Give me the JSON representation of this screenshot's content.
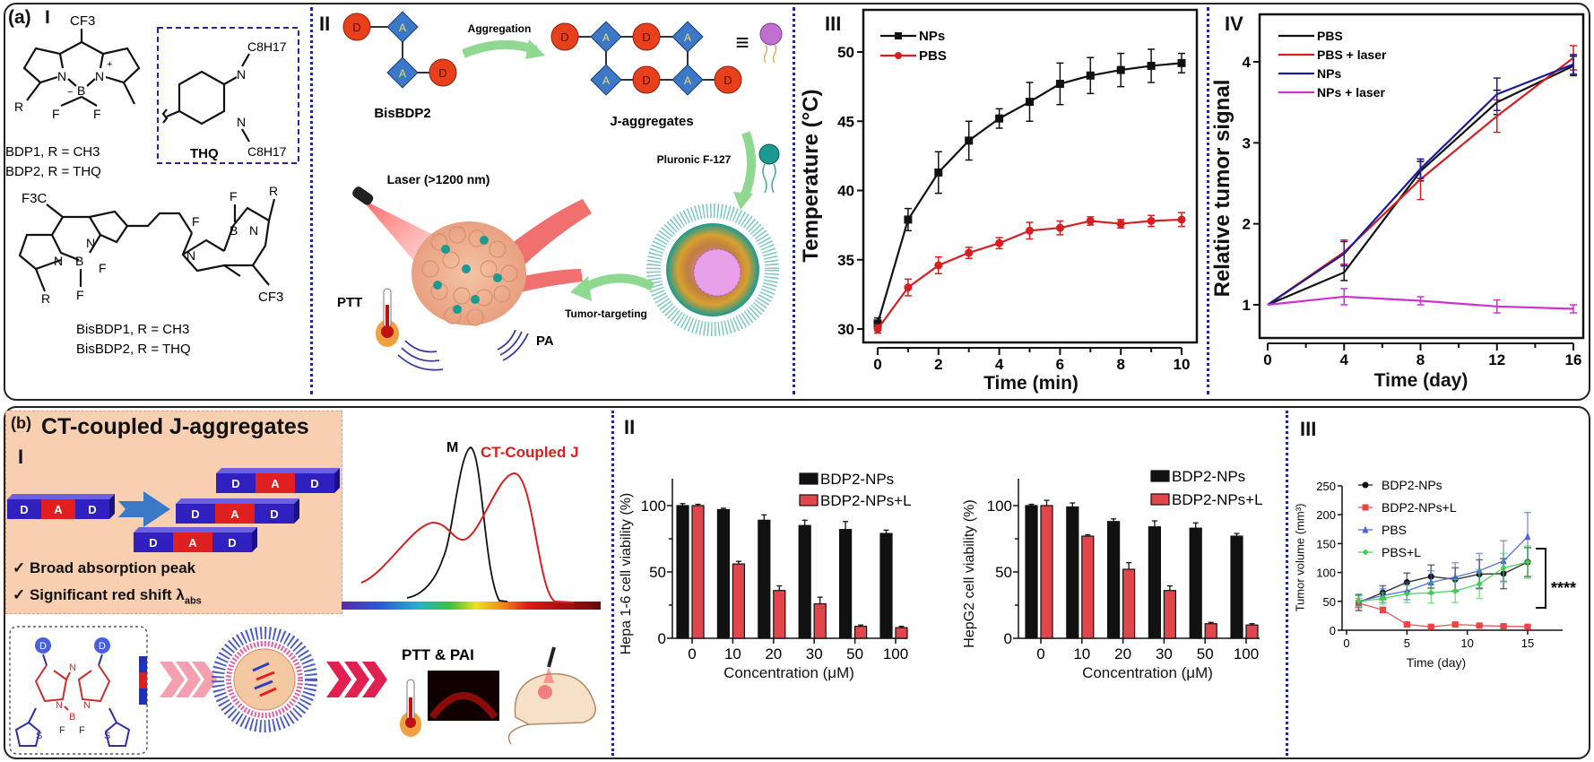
{
  "panel_a": {
    "label": "(a)",
    "section_I": {
      "label": "I",
      "cf3_top": "CF3",
      "bdp_atoms": [
        "N",
        "B",
        "N",
        "F",
        "F",
        "R",
        "−",
        "+"
      ],
      "bdp1": "BDP1, R = CH3",
      "bdp2": "BDP2, R = THQ",
      "thq_label": "THQ",
      "thq_sub_top": "C8H17",
      "thq_sub_bottom": "C8H17",
      "thq_atoms": [
        "N",
        "N"
      ],
      "bis_f3c": "F3C",
      "bis_cf3": "CF3",
      "bis_atoms": [
        "N",
        "B",
        "N",
        "F",
        "F",
        "R",
        "N",
        "B",
        "N",
        "F",
        "F",
        "R"
      ],
      "bisbdp1": "BisBDP1, R = CH3",
      "bisbdp2": "BisBDP2, R = THQ"
    },
    "section_II": {
      "label": "II",
      "donor": "D",
      "acceptor": "A",
      "bisbdp2": "BisBDP2",
      "aggregation": "Aggregation",
      "j_aggregates": "J-aggregates",
      "equiv": "≡",
      "pluronic": "Pluronic F-127",
      "laser": "Laser (>1200 nm)",
      "ptt": "PTT",
      "pa": "PA",
      "tumor_targeting": "Tumor-targeting"
    },
    "section_III": {
      "label": "III"
    },
    "section_IV": {
      "label": "IV"
    }
  },
  "panel_b": {
    "label": "(b)",
    "section_I": {
      "title": "CT-coupled J-aggregates",
      "label": "I",
      "donor": "D",
      "acceptor": "A",
      "check1": "✓ Broad absorption peak",
      "check2": "✓ Significant red shift λ",
      "check2_sub": "abs",
      "spectrum_m": "M",
      "spectrum_ct": "CT-Coupled J",
      "ptt_pai": "PTT & PAI",
      "mol_atoms": [
        "D",
        "D",
        "N",
        "N",
        "N",
        "B",
        "F",
        "F",
        "S",
        "S"
      ]
    },
    "section_II": {
      "label": "II"
    },
    "section_III": {
      "label": "III"
    }
  },
  "colors": {
    "donor": "#e8401c",
    "acceptor": "#3b78c8",
    "npsBlack": "#111111",
    "pbsRed": "#d42020",
    "navy": "#1a1a9a",
    "magenta": "#cc33cc",
    "barRed": "#e0474c",
    "green": "#3ccf4e",
    "blue": "#4a5fd8",
    "peach": "#f8cfb0"
  },
  "chart_data": [
    {
      "type": "line",
      "xlabel": "Time (min)",
      "ylabel": "Temperature (°C)",
      "x": [
        0,
        1,
        2,
        3,
        4,
        5,
        6,
        7,
        8,
        9,
        10
      ],
      "xticks": [
        0,
        2,
        4,
        6,
        8,
        10
      ],
      "xminor": [
        1,
        3,
        5,
        7,
        9
      ],
      "yticks": [
        30,
        35,
        40,
        45,
        50
      ],
      "ylim": [
        29,
        53
      ],
      "legend": "top-left",
      "series": [
        {
          "name": "NPs",
          "color": "#111111",
          "marker": "square",
          "values": [
            30.4,
            37.9,
            41.3,
            43.6,
            45.2,
            46.4,
            47.7,
            48.3,
            48.7,
            49.0,
            49.2
          ],
          "errors": [
            0.4,
            0.8,
            1.5,
            1.4,
            0.7,
            1.4,
            1.5,
            1.3,
            1.2,
            1.2,
            0.7
          ]
        },
        {
          "name": "PBS",
          "color": "#d42020",
          "marker": "circle",
          "values": [
            30.0,
            33.0,
            34.6,
            35.5,
            36.2,
            37.1,
            37.3,
            37.8,
            37.6,
            37.8,
            37.9
          ],
          "errors": [
            0.3,
            0.6,
            0.6,
            0.4,
            0.4,
            0.6,
            0.5,
            0.3,
            0.3,
            0.4,
            0.5
          ]
        }
      ]
    },
    {
      "type": "line",
      "xlabel": "Time (day)",
      "ylabel": "Relative tumor signal",
      "x": [
        0,
        4,
        8,
        12,
        16
      ],
      "xticks": [
        0,
        4,
        8,
        12,
        16
      ],
      "xminor": [
        2,
        6,
        10,
        14
      ],
      "yticks": [
        1,
        2,
        3,
        4
      ],
      "ylim": [
        0.6,
        4.6
      ],
      "legend": "top-left",
      "series": [
        {
          "name": "PBS",
          "color": "#111111",
          "values": [
            1,
            1.4,
            2.65,
            3.5,
            3.95
          ],
          "errors": [
            0,
            0.1,
            0.12,
            0.15,
            0.12
          ]
        },
        {
          "name": "PBS + laser",
          "color": "#d42020",
          "values": [
            1,
            1.65,
            2.55,
            3.33,
            4.05
          ],
          "errors": [
            0,
            0.15,
            0.25,
            0.2,
            0.15
          ]
        },
        {
          "name": "NPs",
          "color": "#1a1a9a",
          "values": [
            1,
            1.63,
            2.68,
            3.6,
            3.97
          ],
          "errors": [
            0,
            0.15,
            0.12,
            0.2,
            0.12
          ]
        },
        {
          "name": "NPs + laser",
          "color": "#cc33cc",
          "values": [
            1,
            1.1,
            1.05,
            0.98,
            0.95
          ],
          "errors": [
            0,
            0.1,
            0.05,
            0.08,
            0.05
          ]
        }
      ]
    },
    {
      "type": "bar",
      "xlabel": "Concentration (μM)",
      "ylabel": "Hepa 1-6 cell viability (%)",
      "categories": [
        "0",
        "10",
        "20",
        "30",
        "50",
        "100"
      ],
      "yticks": [
        0,
        50,
        100
      ],
      "yminor": [
        25,
        75
      ],
      "ylim": [
        0,
        120
      ],
      "legend": "top-right",
      "series": [
        {
          "name": "BDP2-NPs",
          "color": "#111111",
          "values": [
            100,
            97,
            89,
            85,
            82,
            79
          ],
          "errors": [
            1.5,
            1,
            4,
            4,
            6,
            2.5
          ]
        },
        {
          "name": "BDP2-NPs+L",
          "color": "#e0474c",
          "values": [
            100,
            56,
            36,
            26,
            9,
            8
          ],
          "errors": [
            1,
            2,
            3.5,
            5,
            1,
            1
          ]
        }
      ]
    },
    {
      "type": "bar",
      "xlabel": "Concentration (μM)",
      "ylabel": "HepG2 cell viability (%)",
      "categories": [
        "0",
        "10",
        "20",
        "30",
        "50",
        "100"
      ],
      "yticks": [
        0,
        50,
        100
      ],
      "yminor": [
        25,
        75
      ],
      "ylim": [
        0,
        120
      ],
      "legend": "top-right",
      "series": [
        {
          "name": "BDP2-NPs",
          "color": "#111111",
          "values": [
            100,
            99,
            88,
            84,
            83,
            77
          ],
          "errors": [
            1,
            3,
            2,
            4.5,
            4,
            2
          ]
        },
        {
          "name": "BDP2-NPs+L",
          "color": "#e0474c",
          "values": [
            100,
            77,
            52,
            36,
            11,
            10
          ],
          "errors": [
            4,
            1,
            5,
            3.5,
            1,
            1
          ]
        }
      ]
    },
    {
      "type": "line",
      "xlabel": "Time (day)",
      "ylabel": "Tumor volume (mm³)",
      "x": [
        1,
        3,
        5,
        7,
        9,
        11,
        13,
        15
      ],
      "xticks": [
        0,
        5,
        10,
        15
      ],
      "yticks": [
        0,
        50,
        100,
        150,
        200,
        250
      ],
      "ylim": [
        0,
        250
      ],
      "xlim": [
        0,
        18
      ],
      "legend": "top-left",
      "annotation": "****",
      "series": [
        {
          "name": "BDP2-NPs",
          "color": "#111111",
          "marker": "circle",
          "values": [
            48,
            65,
            83,
            93,
            88,
            97,
            98,
            118
          ],
          "errors": [
            14,
            12,
            16,
            20,
            20,
            25,
            26,
            25
          ]
        },
        {
          "name": "BDP2-NPs+L",
          "color": "#ee4444",
          "marker": "square",
          "values": [
            47,
            35,
            10,
            6,
            10,
            8,
            7,
            6
          ],
          "errors": [
            8,
            5,
            3,
            2,
            2,
            2,
            2,
            2
          ]
        },
        {
          "name": "PBS",
          "color": "#4a5fd8",
          "marker": "triangle",
          "values": [
            50,
            60,
            68,
            83,
            92,
            103,
            120,
            162
          ],
          "errors": [
            10,
            12,
            15,
            20,
            25,
            30,
            35,
            42
          ]
        },
        {
          "name": "PBS+L",
          "color": "#3ccf4e",
          "marker": "diamond",
          "values": [
            50,
            55,
            63,
            65,
            68,
            80,
            108,
            118
          ],
          "errors": [
            10,
            10,
            15,
            18,
            20,
            25,
            25,
            28
          ]
        }
      ]
    }
  ]
}
